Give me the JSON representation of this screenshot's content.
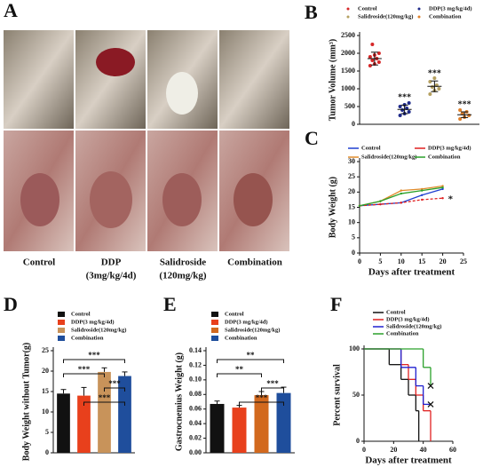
{
  "panel_letters": [
    "A",
    "B",
    "C",
    "D",
    "E",
    "F"
  ],
  "photo_labels": [
    [
      "Control"
    ],
    [
      "DDP",
      "(3mg/kg/4d)"
    ],
    [
      "Salidroside",
      "(120mg/kg)"
    ],
    [
      "Combination"
    ]
  ],
  "chart_data": [
    {
      "type": "dot",
      "ylabel": "Tumor Volume (mm³)",
      "ylim": [
        0,
        2500
      ],
      "yticks": [
        0,
        500,
        1000,
        1500,
        2000,
        2500
      ],
      "series": [
        {
          "name": "Control",
          "color": "#d62728",
          "values": [
            1650,
            1700,
            1750,
            1800,
            1850,
            1900,
            1950,
            2000,
            2250
          ],
          "mean": 1850,
          "error": 180
        },
        {
          "name": "DDP(3 mg/kg/4d)",
          "color": "#1f2a8a",
          "values": [
            250,
            300,
            350,
            400,
            450,
            500,
            550,
            600
          ],
          "mean": 420,
          "error": 120,
          "annotation": "***"
        },
        {
          "name": "Salidroside(120mg/kg)",
          "color": "#b5a060",
          "values": [
            850,
            950,
            1000,
            1050,
            1100,
            1200,
            1300
          ],
          "mean": 1070,
          "error": 150,
          "annotation": "***"
        },
        {
          "name": "Combination",
          "color": "#e0802a",
          "values": [
            150,
            200,
            250,
            300,
            350,
            400
          ],
          "mean": 270,
          "error": 80,
          "annotation": "***"
        }
      ]
    },
    {
      "type": "line",
      "xlabel": "Days after treatment",
      "ylabel": "Body Weight (g)",
      "xlim": [
        0,
        25
      ],
      "xticks": [
        0,
        5,
        10,
        15,
        20,
        25
      ],
      "ylim": [
        0,
        30
      ],
      "yticks": [
        0,
        5,
        10,
        15,
        20,
        25,
        30
      ],
      "x": [
        0,
        5,
        10,
        15,
        20
      ],
      "series": [
        {
          "name": "Control",
          "color": "#1f3fd0",
          "values": [
            15.5,
            16,
            16.5,
            19,
            21
          ]
        },
        {
          "name": "DDP(3 mg/kg/4d)",
          "color": "#e02020",
          "values": [
            15.5,
            16,
            16.5,
            17.5,
            18
          ],
          "dashed": true,
          "annotation": "*"
        },
        {
          "name": "Salidroside(120mg/kg)",
          "color": "#e08a2a",
          "values": [
            15.5,
            17,
            20.5,
            21,
            22
          ]
        },
        {
          "name": "Combination",
          "color": "#2aa02a",
          "values": [
            15.5,
            17,
            19.5,
            20.5,
            21.5
          ]
        }
      ]
    },
    {
      "type": "bar",
      "ylabel": "Body Weight without Tumor(g)",
      "ylim": [
        0,
        25
      ],
      "yticks": [
        0,
        5,
        10,
        15,
        20,
        25
      ],
      "legend": [
        "Control",
        "DDP(3 mg/kg/4d)",
        "Salidroside(120mg/kg)",
        "Combination"
      ],
      "colors": [
        "#111111",
        "#e8401c",
        "#c8935a",
        "#1f4e9c"
      ],
      "values": [
        14.5,
        14,
        19.8,
        18.8
      ],
      "errors": [
        1,
        2,
        1,
        1
      ],
      "annotations": [
        "***",
        "***",
        "***",
        "***"
      ]
    },
    {
      "type": "bar",
      "ylabel": "Gastrocnemius Weight (g)",
      "ylim": [
        0,
        0.14
      ],
      "yticks": [
        {
          "value": 0,
          "label": "0.00"
        },
        0.02,
        0.04,
        0.06,
        0.08,
        {
          "value": 0.1,
          "label": "0.10"
        },
        0.12,
        0.14
      ],
      "legend": [
        "Control",
        "DDP(3 mg/kg/4d)",
        "Salidroside(120mg/kg)",
        "Combination"
      ],
      "colors": [
        "#111111",
        "#e8401c",
        "#d2691e",
        "#1f4e9c"
      ],
      "values": [
        0.067,
        0.062,
        0.079,
        0.082
      ],
      "errors": [
        0.004,
        0.003,
        0.005,
        0.008
      ],
      "annotations": [
        "**",
        "**",
        "***",
        "***"
      ]
    },
    {
      "type": "step",
      "xlabel": "Days after treatment",
      "ylabel": "Percent survival",
      "xlim": [
        0,
        60
      ],
      "xticks": [
        0,
        20,
        40,
        60
      ],
      "ylim": [
        0,
        100
      ],
      "yticks": [
        0,
        50,
        100
      ],
      "series": [
        {
          "name": "Control",
          "color": "#111111",
          "x": [
            0,
            17,
            25,
            30,
            35,
            37
          ],
          "values": [
            100,
            83,
            67,
            50,
            33,
            0
          ]
        },
        {
          "name": "DDP(3 mg/kg/4d)",
          "color": "#e02020",
          "x": [
            0,
            25,
            30,
            35,
            40,
            45
          ],
          "values": [
            100,
            83,
            67,
            50,
            33,
            0
          ]
        },
        {
          "name": "Salidroside(120mg/kg)",
          "color": "#2020d0",
          "x": [
            0,
            25,
            35,
            40
          ],
          "values": [
            100,
            80,
            60,
            40
          ],
          "censor_x": 45
        },
        {
          "name": "Combination",
          "color": "#2aa02a",
          "x": [
            0,
            40,
            45
          ],
          "values": [
            100,
            80,
            60
          ],
          "censor_x": 45
        }
      ]
    }
  ]
}
